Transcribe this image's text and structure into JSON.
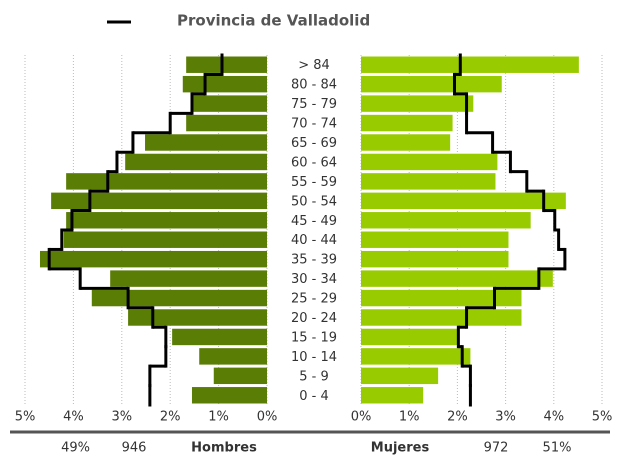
{
  "chart_data": {
    "type": "pyramid",
    "categories": [
      "> 84",
      "80 - 84",
      "75 - 79",
      "70 - 74",
      "65 - 69",
      "60 - 64",
      "55 - 59",
      "50 - 54",
      "45 - 49",
      "40 - 44",
      "35 - 39",
      "30 - 34",
      "25 - 29",
      "20 - 24",
      "15 - 19",
      "10 - 14",
      "5 - 9",
      "0 - 4"
    ],
    "series": [
      {
        "name": "Hombres",
        "side": "left",
        "color": "#5a7d06",
        "values": [
          1.67,
          1.74,
          1.53,
          1.67,
          2.52,
          2.93,
          4.15,
          4.46,
          4.15,
          4.2,
          4.69,
          3.24,
          3.62,
          2.87,
          1.96,
          1.4,
          1.1,
          1.55
        ]
      },
      {
        "name": "Mujeres",
        "side": "right",
        "color": "#99cc00",
        "values": [
          4.52,
          2.92,
          2.33,
          1.9,
          1.85,
          2.83,
          2.79,
          4.25,
          3.52,
          3.06,
          3.06,
          3.98,
          3.33,
          3.33,
          2.02,
          2.27,
          1.6,
          1.29
        ]
      }
    ],
    "reference": {
      "name": "Provincia de Valladolid",
      "color": "#000000",
      "left": [
        0.93,
        1.28,
        1.55,
        2.0,
        2.77,
        3.1,
        3.29,
        3.66,
        4.03,
        4.24,
        4.5,
        3.86,
        2.87,
        2.36,
        2.09,
        2.09,
        2.42,
        2.42
      ],
      "right": [
        2.06,
        1.94,
        2.19,
        2.19,
        2.73,
        3.1,
        3.44,
        3.79,
        4.02,
        4.1,
        4.23,
        3.69,
        2.77,
        2.19,
        2.02,
        2.1,
        2.27,
        2.27
      ]
    },
    "xlim": [
      0,
      5
    ],
    "xticks": [
      {
        "value": 5,
        "label": "5%"
      },
      {
        "value": 4,
        "label": "4%"
      },
      {
        "value": 3,
        "label": "3%"
      },
      {
        "value": 2,
        "label": "2%"
      },
      {
        "value": 1,
        "label": "1%"
      },
      {
        "value": 0,
        "label": "0%"
      }
    ],
    "grid": true,
    "totals": {
      "left": {
        "percent": {
          "value": 49,
          "label": "49%"
        },
        "count": 946
      },
      "right": {
        "count": 972,
        "percent": {
          "value": 51,
          "label": "51%"
        }
      }
    }
  }
}
